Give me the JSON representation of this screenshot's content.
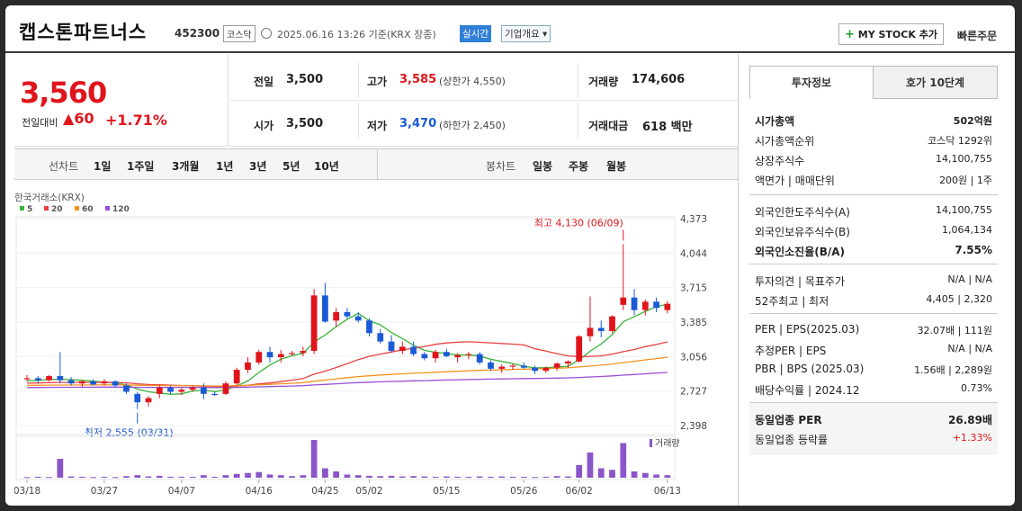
{
  "header": {
    "name": "캡스톤파트너스",
    "code": "452300",
    "market": "코스닥",
    "timestamp": "2025.06.16 13:26 기준(KRX 장종)",
    "realtime": "실시간",
    "overview": "기업개요",
    "overview_arrow": "▾",
    "mystock_plus": "+",
    "mystock": "MY STOCK 추가",
    "quick_order": "빠른주문"
  },
  "price": {
    "current": "3,560",
    "change_label": "전일대비",
    "change_arrow": "▲",
    "change": "60",
    "change_pct": "+1.71%"
  },
  "quote": {
    "prev": {
      "label": "전일",
      "value": "3,500"
    },
    "high": {
      "label": "고가",
      "value": "3,585",
      "sub": "(상한가 4,550)"
    },
    "volume": {
      "label": "거래량",
      "value": "174,606"
    },
    "open": {
      "label": "시가",
      "value": "3,500"
    },
    "low": {
      "label": "저가",
      "value": "3,470",
      "sub": "(하한가 2,450)"
    },
    "amount": {
      "label": "거래대금",
      "value": "618",
      "unit": "백만"
    }
  },
  "toolbar": {
    "line_chart": "선차트",
    "periods": [
      "1일",
      "1주일",
      "3개월",
      "1년",
      "3년",
      "5년",
      "10년"
    ],
    "candle": "봉차트",
    "candle_periods": [
      "일봉",
      "주봉",
      "월봉"
    ]
  },
  "chart_data": {
    "type": "candlestick",
    "source": "한국거래소(KRX)",
    "ma_legend": [
      {
        "name": "5",
        "color": "#3ab33a"
      },
      {
        "name": "20",
        "color": "#e84040"
      },
      {
        "name": "60",
        "color": "#f39320"
      },
      {
        "name": "120",
        "color": "#9b4fd6"
      }
    ],
    "y_ticks": [
      "4,373",
      "4,044",
      "3,715",
      "3,385",
      "3,056",
      "2,727",
      "2,398"
    ],
    "ylim": [
      2398,
      4373
    ],
    "x_ticks": [
      {
        "i": 0,
        "label": "03/18"
      },
      {
        "i": 7,
        "label": "03/27"
      },
      {
        "i": 14,
        "label": "04/07"
      },
      {
        "i": 21,
        "label": "04/16"
      },
      {
        "i": 27,
        "label": "04/25"
      },
      {
        "i": 31,
        "label": "05/02"
      },
      {
        "i": 38,
        "label": "05/15"
      },
      {
        "i": 45,
        "label": "05/26"
      },
      {
        "i": 50,
        "label": "06/02"
      },
      {
        "i": 58,
        "label": "06/13"
      }
    ],
    "annotation_high": "최고 4,130 (06/09)",
    "annotation_low": "최저 2,555 (03/31)",
    "volume_label": "거래량",
    "candles": [
      [
        2840,
        2880,
        2820,
        2850
      ],
      [
        2850,
        2870,
        2800,
        2830
      ],
      [
        2830,
        2880,
        2820,
        2870
      ],
      [
        2870,
        3100,
        2800,
        2830
      ],
      [
        2830,
        2860,
        2780,
        2800
      ],
      [
        2800,
        2830,
        2770,
        2820
      ],
      [
        2820,
        2840,
        2780,
        2790
      ],
      [
        2800,
        2840,
        2780,
        2820
      ],
      [
        2820,
        2830,
        2760,
        2780
      ],
      [
        2780,
        2800,
        2700,
        2720
      ],
      [
        2700,
        2720,
        2555,
        2620
      ],
      [
        2620,
        2680,
        2580,
        2660
      ],
      [
        2700,
        2780,
        2660,
        2760
      ],
      [
        2760,
        2780,
        2700,
        2720
      ],
      [
        2720,
        2760,
        2690,
        2740
      ],
      [
        2740,
        2780,
        2720,
        2760
      ],
      [
        2760,
        2800,
        2650,
        2700
      ],
      [
        2700,
        2720,
        2680,
        2690
      ],
      [
        2700,
        2820,
        2690,
        2800
      ],
      [
        2800,
        2950,
        2780,
        2930
      ],
      [
        2930,
        3050,
        2900,
        3000
      ],
      [
        3000,
        3120,
        2980,
        3100
      ],
      [
        3100,
        3150,
        3000,
        3050
      ],
      [
        3050,
        3120,
        3000,
        3080
      ],
      [
        3080,
        3110,
        3060,
        3090
      ],
      [
        3090,
        3150,
        3060,
        3110
      ],
      [
        3110,
        3700,
        3080,
        3640
      ],
      [
        3640,
        3760,
        3380,
        3390
      ],
      [
        3400,
        3520,
        3340,
        3480
      ],
      [
        3480,
        3520,
        3420,
        3440
      ],
      [
        3440,
        3480,
        3380,
        3400
      ],
      [
        3400,
        3420,
        3250,
        3280
      ],
      [
        3280,
        3320,
        3180,
        3200
      ],
      [
        3200,
        3260,
        3100,
        3110
      ],
      [
        3110,
        3200,
        3080,
        3150
      ],
      [
        3150,
        3200,
        3060,
        3080
      ],
      [
        3080,
        3100,
        3020,
        3040
      ],
      [
        3040,
        3120,
        3000,
        3100
      ],
      [
        3100,
        3130,
        3050,
        3060
      ],
      [
        3050,
        3090,
        3000,
        3070
      ],
      [
        3070,
        3100,
        3030,
        3080
      ],
      [
        3080,
        3100,
        2980,
        3000
      ],
      [
        3000,
        3020,
        2920,
        2940
      ],
      [
        2940,
        2980,
        2900,
        2960
      ],
      [
        2960,
        2990,
        2930,
        2970
      ],
      [
        2970,
        3000,
        2940,
        2950
      ],
      [
        2950,
        2970,
        2890,
        2920
      ],
      [
        2920,
        2960,
        2900,
        2950
      ],
      [
        2950,
        3000,
        2920,
        2990
      ],
      [
        2990,
        3020,
        2950,
        3010
      ],
      [
        3010,
        3260,
        3000,
        3250
      ],
      [
        3250,
        3630,
        3200,
        3330
      ],
      [
        3330,
        3400,
        3240,
        3300
      ],
      [
        3300,
        3450,
        3280,
        3440
      ],
      [
        3550,
        4130,
        3500,
        3620
      ],
      [
        3620,
        3700,
        3450,
        3500
      ],
      [
        3500,
        3600,
        3450,
        3580
      ],
      [
        3580,
        3620,
        3480,
        3520
      ],
      [
        3500,
        3585,
        3470,
        3560
      ]
    ],
    "volumes": [
      2,
      3,
      2,
      60,
      4,
      3,
      2,
      3,
      2,
      5,
      8,
      4,
      6,
      3,
      3,
      3,
      8,
      3,
      8,
      12,
      15,
      18,
      10,
      8,
      5,
      8,
      120,
      30,
      20,
      10,
      8,
      6,
      5,
      6,
      4,
      5,
      4,
      3,
      4,
      3,
      3,
      4,
      3,
      4,
      3,
      3,
      2,
      3,
      5,
      4,
      40,
      80,
      30,
      25,
      110,
      20,
      15,
      10,
      8
    ]
  },
  "side": {
    "tab1": "투자정보",
    "tab2": "호가 10단계",
    "mcap_label": "시가총액",
    "mcap": "502억원",
    "rank_label": "시가총액순위",
    "rank": "코스닥 1292위",
    "shares_label": "상장주식수",
    "shares": "14,100,755",
    "par_label": "액면가 | 매매단위",
    "par": "200원 | 1주",
    "flimit_label": "외국인한도주식수(A)",
    "flimit": "14,100,755",
    "fhold_label": "외국인보유주식수(B)",
    "fhold": "1,064,134",
    "fratio_label": "외국인소진율(B/A)",
    "fratio": "7.55%",
    "opinion_label": "투자의견 | 목표주가",
    "opinion": "N/A | N/A",
    "w52_label": "52주최고 | 최저",
    "w52": "4,405 | 2,320",
    "per_label": "PER | EPS(2025.03)",
    "per": "32.07배 | 111원",
    "eper_label": "추정PER | EPS",
    "eper": "N/A | N/A",
    "pbr_label": "PBR | BPS (2025.03)",
    "pbr": "1.56배 | 2,289원",
    "div_label": "배당수익률 | 2024.12",
    "div": "0.73%",
    "sper_label": "동일업종 PER",
    "sper": "26.89배",
    "srate_label": "동일업종 등락률",
    "srate": "+1.33%"
  }
}
